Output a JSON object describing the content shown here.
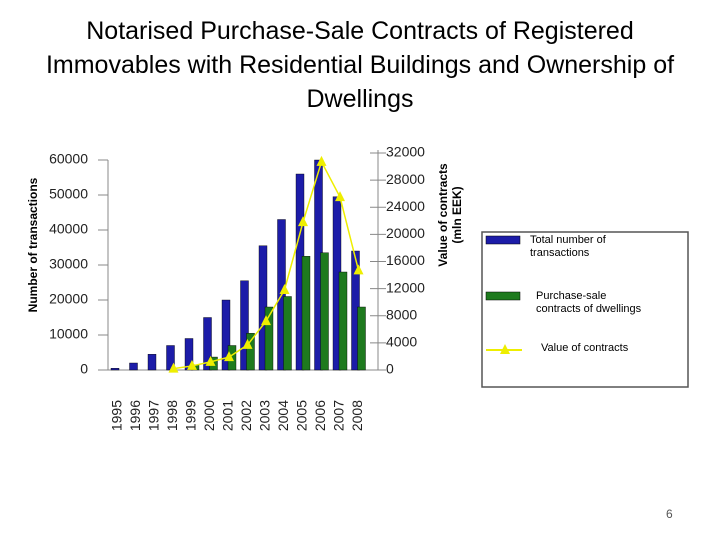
{
  "chart_data": {
    "type": "bar",
    "title": "Notarised Purchase-Sale Contracts of Registered Immovables with Residential Buildings and Ownership of Dwellings",
    "ylabel": "Number of transactions",
    "y2label": [
      "Value of contracts",
      "(mln EEK)"
    ],
    "categories": [
      "1995",
      "1996",
      "1997",
      "1998",
      "1999",
      "2000",
      "2001",
      "2002",
      "2003",
      "2004",
      "2005",
      "2006",
      "2007",
      "2008"
    ],
    "series": [
      {
        "name": "Total number of transactions",
        "color": "#1c1ca8",
        "values": [
          500,
          2000,
          4500,
          7000,
          9000,
          15000,
          20000,
          25500,
          35500,
          43000,
          56000,
          60000,
          49500,
          34000
        ]
      },
      {
        "name": "Purchase-sale contracts of dwellings",
        "color": "#1e7a1e",
        "values": [
          null,
          null,
          null,
          null,
          1500,
          3700,
          7000,
          10500,
          18000,
          21000,
          32500,
          33500,
          28000,
          18000
        ]
      },
      {
        "name": "Value of contracts",
        "color": "#eeee00",
        "type": "line",
        "axis": "y2",
        "values": [
          null,
          null,
          null,
          200,
          600,
          1200,
          1900,
          3700,
          7200,
          11800,
          21800,
          30700,
          25500,
          14700
        ]
      }
    ],
    "ylim": [
      0,
      60000
    ],
    "yticks": [
      0,
      10000,
      20000,
      30000,
      40000,
      50000,
      60000
    ],
    "y2lim": [
      0,
      32000
    ],
    "y2ticks": [
      0,
      4000,
      8000,
      12000,
      16000,
      20000,
      24000,
      28000,
      32000
    ],
    "grid": false
  },
  "page_number": "6"
}
